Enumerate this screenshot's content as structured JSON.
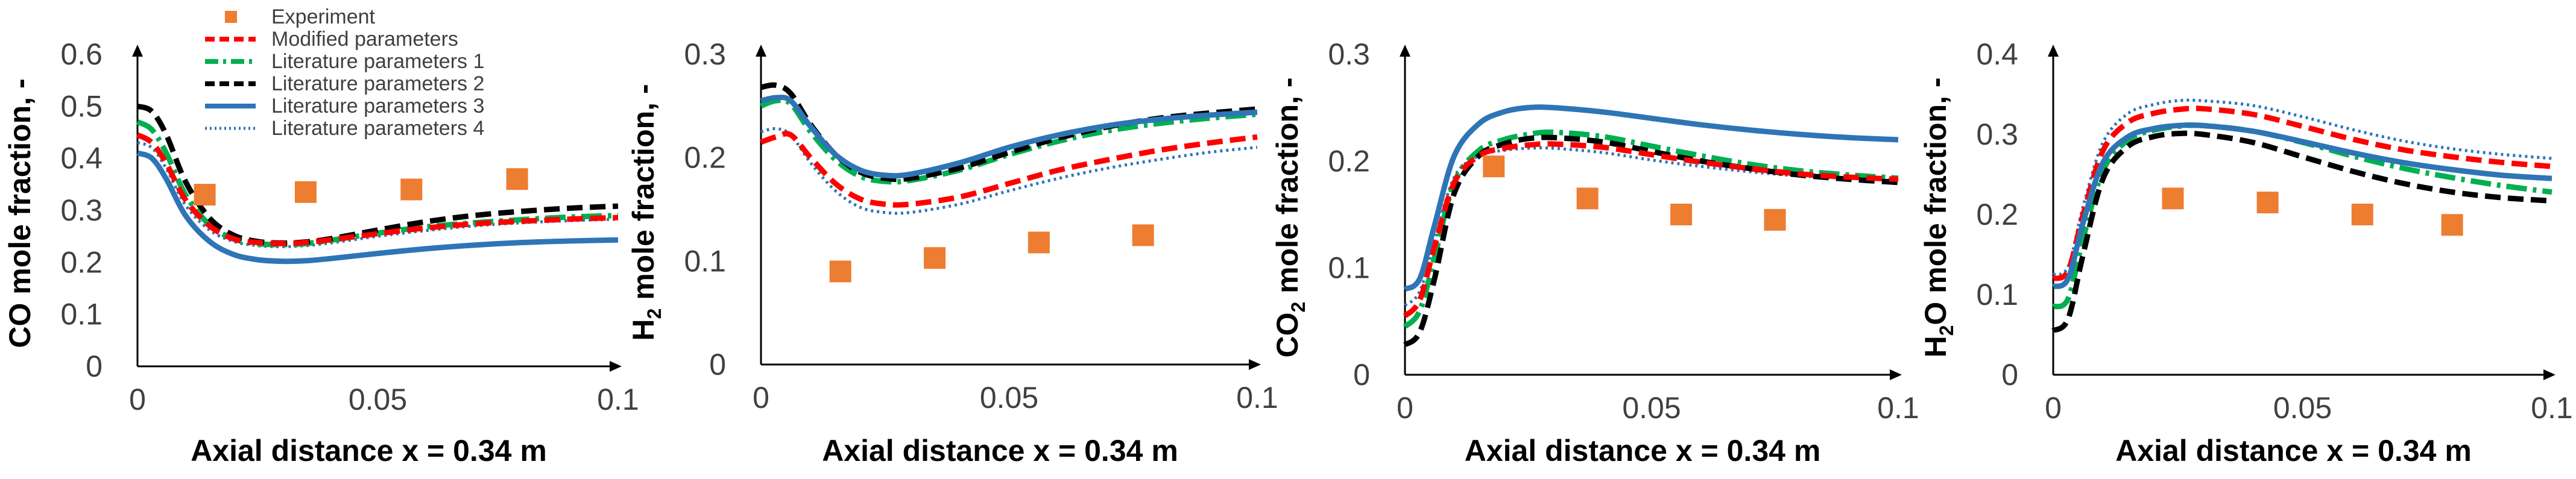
{
  "figure": {
    "legend_entries": [
      {
        "name": "Experiment",
        "style": "square-marker",
        "color": "#ED7D31"
      },
      {
        "name": "Modified parameters",
        "style": "dashed",
        "color": "#FF0000"
      },
      {
        "name": "Literature parameters 1",
        "style": "dash-dot",
        "color": "#00B050"
      },
      {
        "name": "Literature parameters 2",
        "style": "dashed",
        "color": "#000000"
      },
      {
        "name": "Literature parameters 3",
        "style": "solid",
        "color": "#2E75B6"
      },
      {
        "name": "Literature parameters 4",
        "style": "dotted",
        "color": "#2E75B6"
      }
    ]
  },
  "chart_data": [
    {
      "type": "line",
      "species": "CO",
      "ylabel_main": "CO",
      "ylabel_sub": "",
      "ylabel_rest": " mole fraction, -",
      "xlabel": "Axial distance x = 0.34 m",
      "xlim": [
        0,
        0.1
      ],
      "ylim": [
        0,
        0.6
      ],
      "xticks": [
        0,
        0.05,
        0.1
      ],
      "xtick_labels": [
        "0",
        "0.05",
        "0.1"
      ],
      "yticks": [
        0,
        0.1,
        0.2,
        0.3,
        0.4,
        0.5,
        0.6
      ],
      "ytick_labels": [
        "0",
        "0.1",
        "0.2",
        "0.3",
        "0.4",
        "0.5",
        "0.6"
      ],
      "experiment": {
        "x": [
          0.014,
          0.035,
          0.057,
          0.079
        ],
        "y": [
          0.33,
          0.335,
          0.34,
          0.36
        ]
      },
      "series": [
        {
          "name": "Modified parameters",
          "x": [
            0,
            0.003,
            0.006,
            0.01,
            0.015,
            0.02,
            0.025,
            0.03,
            0.035,
            0.04,
            0.05,
            0.06,
            0.07,
            0.08,
            0.09,
            0.1
          ],
          "y": [
            0.445,
            0.43,
            0.39,
            0.32,
            0.27,
            0.245,
            0.238,
            0.236,
            0.238,
            0.243,
            0.255,
            0.266,
            0.274,
            0.279,
            0.283,
            0.286
          ]
        },
        {
          "name": "Literature parameters 1",
          "x": [
            0,
            0.003,
            0.006,
            0.01,
            0.015,
            0.02,
            0.025,
            0.03,
            0.035,
            0.04,
            0.05,
            0.06,
            0.07,
            0.08,
            0.09,
            0.1
          ],
          "y": [
            0.47,
            0.455,
            0.41,
            0.33,
            0.272,
            0.245,
            0.236,
            0.234,
            0.236,
            0.242,
            0.256,
            0.268,
            0.276,
            0.282,
            0.287,
            0.29
          ]
        },
        {
          "name": "Literature parameters 2",
          "x": [
            0,
            0.003,
            0.006,
            0.01,
            0.015,
            0.02,
            0.025,
            0.03,
            0.035,
            0.04,
            0.05,
            0.06,
            0.07,
            0.08,
            0.09,
            0.1
          ],
          "y": [
            0.5,
            0.49,
            0.445,
            0.355,
            0.285,
            0.252,
            0.24,
            0.237,
            0.239,
            0.245,
            0.262,
            0.278,
            0.29,
            0.298,
            0.304,
            0.308
          ]
        },
        {
          "name": "Literature parameters 3",
          "x": [
            0,
            0.003,
            0.006,
            0.01,
            0.015,
            0.02,
            0.025,
            0.03,
            0.035,
            0.04,
            0.05,
            0.06,
            0.07,
            0.08,
            0.09,
            0.1
          ],
          "y": [
            0.41,
            0.4,
            0.36,
            0.29,
            0.24,
            0.215,
            0.205,
            0.202,
            0.203,
            0.207,
            0.217,
            0.226,
            0.233,
            0.238,
            0.241,
            0.243
          ]
        },
        {
          "name": "Literature parameters 4",
          "x": [
            0,
            0.003,
            0.006,
            0.01,
            0.015,
            0.02,
            0.025,
            0.03,
            0.035,
            0.04,
            0.05,
            0.06,
            0.07,
            0.08,
            0.09,
            0.1
          ],
          "y": [
            0.43,
            0.42,
            0.38,
            0.31,
            0.262,
            0.24,
            0.232,
            0.23,
            0.232,
            0.237,
            0.25,
            0.261,
            0.27,
            0.276,
            0.28,
            0.283
          ]
        }
      ]
    },
    {
      "type": "line",
      "species": "H2",
      "ylabel_main": "H",
      "ylabel_sub": "2",
      "ylabel_rest": " mole fraction, -",
      "xlabel": "Axial distance x = 0.34 m",
      "xlim": [
        0,
        0.1
      ],
      "ylim": [
        0,
        0.3
      ],
      "xticks": [
        0,
        0.05,
        0.1
      ],
      "xtick_labels": [
        "0",
        "0.05",
        "0.1"
      ],
      "yticks": [
        0,
        0.1,
        0.2,
        0.3
      ],
      "ytick_labels": [
        "0",
        "0.1",
        "0.2",
        "0.3"
      ],
      "experiment": {
        "x": [
          0.016,
          0.035,
          0.056,
          0.077
        ],
        "y": [
          0.09,
          0.103,
          0.118,
          0.125
        ]
      },
      "series": [
        {
          "name": "Modified parameters",
          "x": [
            0,
            0.003,
            0.006,
            0.01,
            0.015,
            0.02,
            0.025,
            0.03,
            0.04,
            0.05,
            0.06,
            0.07,
            0.08,
            0.09,
            0.1
          ],
          "y": [
            0.215,
            0.22,
            0.222,
            0.2,
            0.175,
            0.16,
            0.155,
            0.155,
            0.162,
            0.175,
            0.188,
            0.198,
            0.207,
            0.214,
            0.22
          ]
        },
        {
          "name": "Literature parameters 1",
          "x": [
            0,
            0.003,
            0.006,
            0.01,
            0.015,
            0.02,
            0.025,
            0.03,
            0.04,
            0.05,
            0.06,
            0.07,
            0.08,
            0.09,
            0.1
          ],
          "y": [
            0.25,
            0.255,
            0.252,
            0.225,
            0.198,
            0.182,
            0.177,
            0.178,
            0.188,
            0.203,
            0.216,
            0.226,
            0.233,
            0.238,
            0.242
          ]
        },
        {
          "name": "Literature parameters 2",
          "x": [
            0,
            0.003,
            0.006,
            0.01,
            0.015,
            0.02,
            0.025,
            0.03,
            0.04,
            0.05,
            0.06,
            0.07,
            0.08,
            0.09,
            0.1
          ],
          "y": [
            0.268,
            0.27,
            0.262,
            0.232,
            0.203,
            0.186,
            0.18,
            0.18,
            0.19,
            0.205,
            0.219,
            0.23,
            0.238,
            0.243,
            0.247
          ]
        },
        {
          "name": "Literature parameters 3",
          "x": [
            0,
            0.003,
            0.006,
            0.01,
            0.015,
            0.02,
            0.025,
            0.03,
            0.04,
            0.05,
            0.06,
            0.07,
            0.08,
            0.09,
            0.1
          ],
          "y": [
            0.255,
            0.258,
            0.255,
            0.23,
            0.203,
            0.188,
            0.183,
            0.184,
            0.195,
            0.21,
            0.222,
            0.231,
            0.237,
            0.241,
            0.244
          ]
        },
        {
          "name": "Literature parameters 4",
          "x": [
            0,
            0.003,
            0.006,
            0.01,
            0.015,
            0.02,
            0.025,
            0.03,
            0.04,
            0.05,
            0.06,
            0.07,
            0.08,
            0.09,
            0.1
          ],
          "y": [
            0.225,
            0.228,
            0.222,
            0.195,
            0.168,
            0.152,
            0.147,
            0.147,
            0.155,
            0.168,
            0.18,
            0.19,
            0.198,
            0.205,
            0.21
          ]
        }
      ]
    },
    {
      "type": "line",
      "species": "CO2",
      "ylabel_main": "CO",
      "ylabel_sub": "2",
      "ylabel_rest": " mole fraction, -",
      "xlabel": "Axial distance x = 0.34 m",
      "xlim": [
        0,
        0.1
      ],
      "ylim": [
        0,
        0.3
      ],
      "xticks": [
        0,
        0.05,
        0.1
      ],
      "xtick_labels": [
        "0",
        "0.05",
        "0.1"
      ],
      "yticks": [
        0,
        0.1,
        0.2,
        0.3
      ],
      "ytick_labels": [
        "0",
        "0.1",
        "0.2",
        "0.3"
      ],
      "experiment": {
        "x": [
          0.018,
          0.037,
          0.056,
          0.075
        ],
        "y": [
          0.195,
          0.165,
          0.15,
          0.145
        ]
      },
      "series": [
        {
          "name": "Modified parameters",
          "x": [
            0,
            0.003,
            0.006,
            0.01,
            0.015,
            0.02,
            0.025,
            0.03,
            0.04,
            0.05,
            0.06,
            0.07,
            0.08,
            0.09,
            0.1
          ],
          "y": [
            0.055,
            0.07,
            0.12,
            0.18,
            0.205,
            0.212,
            0.215,
            0.216,
            0.213,
            0.206,
            0.199,
            0.193,
            0.188,
            0.185,
            0.183
          ]
        },
        {
          "name": "Literature parameters 1",
          "x": [
            0,
            0.003,
            0.006,
            0.01,
            0.015,
            0.02,
            0.025,
            0.03,
            0.04,
            0.05,
            0.06,
            0.07,
            0.08,
            0.09,
            0.1
          ],
          "y": [
            0.045,
            0.06,
            0.11,
            0.18,
            0.21,
            0.22,
            0.225,
            0.227,
            0.223,
            0.214,
            0.205,
            0.197,
            0.191,
            0.187,
            0.184
          ]
        },
        {
          "name": "Literature parameters 2",
          "x": [
            0,
            0.003,
            0.006,
            0.01,
            0.015,
            0.02,
            0.025,
            0.03,
            0.04,
            0.05,
            0.06,
            0.07,
            0.08,
            0.09,
            0.1
          ],
          "y": [
            0.028,
            0.04,
            0.09,
            0.17,
            0.205,
            0.216,
            0.221,
            0.222,
            0.218,
            0.209,
            0.2,
            0.193,
            0.187,
            0.183,
            0.18
          ]
        },
        {
          "name": "Literature parameters 3",
          "x": [
            0,
            0.003,
            0.006,
            0.01,
            0.015,
            0.02,
            0.025,
            0.03,
            0.04,
            0.05,
            0.06,
            0.07,
            0.08,
            0.09,
            0.1
          ],
          "y": [
            0.08,
            0.09,
            0.14,
            0.205,
            0.235,
            0.246,
            0.25,
            0.25,
            0.246,
            0.24,
            0.234,
            0.229,
            0.225,
            0.222,
            0.22
          ]
        },
        {
          "name": "Literature parameters 4",
          "x": [
            0,
            0.003,
            0.006,
            0.01,
            0.015,
            0.02,
            0.025,
            0.03,
            0.04,
            0.05,
            0.06,
            0.07,
            0.08,
            0.09,
            0.1
          ],
          "y": [
            0.065,
            0.078,
            0.125,
            0.185,
            0.205,
            0.21,
            0.212,
            0.212,
            0.208,
            0.201,
            0.195,
            0.19,
            0.186,
            0.184,
            0.182
          ]
        }
      ]
    },
    {
      "type": "line",
      "species": "H2O",
      "ylabel_main": "H",
      "ylabel_sub": "2",
      "ylabel_rest": "O mole fraction, -",
      "xlabel": "Axial distance x = 0.34 m",
      "xlim": [
        0,
        0.1
      ],
      "ylim": [
        0,
        0.4
      ],
      "xticks": [
        0,
        0.05,
        0.1
      ],
      "xtick_labels": [
        "0",
        "0.05",
        "0.1"
      ],
      "yticks": [
        0,
        0.1,
        0.2,
        0.3,
        0.4
      ],
      "ytick_labels": [
        "0",
        "0.1",
        "0.2",
        "0.3",
        "0.4"
      ],
      "experiment": {
        "x": [
          0.024,
          0.043,
          0.062,
          0.08
        ],
        "y": [
          0.22,
          0.215,
          0.2,
          0.187
        ]
      },
      "series": [
        {
          "name": "Modified parameters",
          "x": [
            0,
            0.003,
            0.006,
            0.01,
            0.015,
            0.02,
            0.025,
            0.03,
            0.04,
            0.05,
            0.06,
            0.07,
            0.08,
            0.09,
            0.1
          ],
          "y": [
            0.12,
            0.13,
            0.2,
            0.28,
            0.315,
            0.326,
            0.331,
            0.332,
            0.325,
            0.31,
            0.294,
            0.281,
            0.272,
            0.265,
            0.26
          ]
        },
        {
          "name": "Literature parameters 1",
          "x": [
            0,
            0.003,
            0.006,
            0.01,
            0.015,
            0.02,
            0.025,
            0.03,
            0.04,
            0.05,
            0.06,
            0.07,
            0.08,
            0.09,
            0.1
          ],
          "y": [
            0.085,
            0.095,
            0.17,
            0.255,
            0.293,
            0.305,
            0.31,
            0.311,
            0.304,
            0.29,
            0.273,
            0.258,
            0.246,
            0.236,
            0.228
          ]
        },
        {
          "name": "Literature parameters 2",
          "x": [
            0,
            0.003,
            0.006,
            0.01,
            0.015,
            0.02,
            0.025,
            0.03,
            0.04,
            0.05,
            0.06,
            0.07,
            0.08,
            0.09,
            0.1
          ],
          "y": [
            0.055,
            0.07,
            0.15,
            0.245,
            0.285,
            0.297,
            0.301,
            0.3,
            0.29,
            0.272,
            0.254,
            0.239,
            0.228,
            0.221,
            0.217
          ]
        },
        {
          "name": "Literature parameters 3",
          "x": [
            0,
            0.003,
            0.006,
            0.01,
            0.015,
            0.02,
            0.025,
            0.03,
            0.04,
            0.05,
            0.06,
            0.07,
            0.08,
            0.09,
            0.1
          ],
          "y": [
            0.11,
            0.12,
            0.19,
            0.265,
            0.297,
            0.307,
            0.311,
            0.311,
            0.304,
            0.291,
            0.277,
            0.265,
            0.256,
            0.249,
            0.245
          ]
        },
        {
          "name": "Literature parameters 4",
          "x": [
            0,
            0.003,
            0.006,
            0.01,
            0.015,
            0.02,
            0.025,
            0.03,
            0.04,
            0.05,
            0.06,
            0.07,
            0.08,
            0.09,
            0.1
          ],
          "y": [
            0.125,
            0.135,
            0.21,
            0.29,
            0.326,
            0.337,
            0.342,
            0.342,
            0.336,
            0.322,
            0.306,
            0.292,
            0.282,
            0.275,
            0.27
          ]
        }
      ]
    }
  ]
}
